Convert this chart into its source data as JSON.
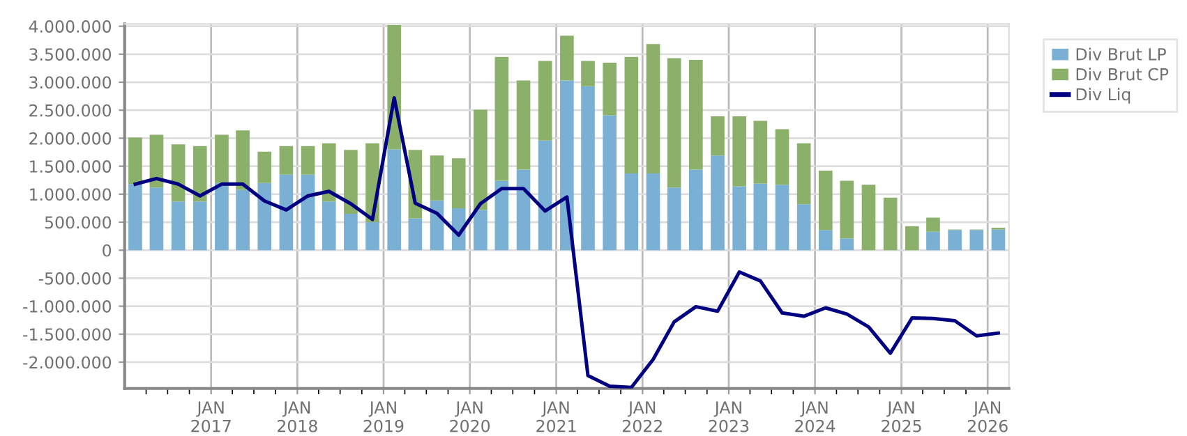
{
  "chart_data": {
    "type": "bar",
    "stacked": true,
    "x": [
      "2016-02-15",
      "2016-05-15",
      "2016-08-15",
      "2016-11-15",
      "2017-02-15",
      "2017-05-15",
      "2017-08-15",
      "2017-11-15",
      "2018-02-15",
      "2018-05-15",
      "2018-08-15",
      "2018-11-15",
      "2019-02-15",
      "2019-05-15",
      "2019-08-15",
      "2019-11-15",
      "2020-02-15",
      "2020-05-15",
      "2020-08-15",
      "2020-11-15",
      "2021-02-15",
      "2021-05-15",
      "2021-08-15",
      "2021-11-15",
      "2022-02-15",
      "2022-05-15",
      "2022-08-15",
      "2022-11-15",
      "2023-02-15",
      "2023-05-15",
      "2023-08-15",
      "2023-11-15",
      "2024-02-15",
      "2024-05-15",
      "2024-08-15",
      "2024-11-15",
      "2025-02-15",
      "2025-05-15",
      "2025-08-15",
      "2025-11-15",
      "2026-02-15"
    ],
    "series": [
      {
        "name": "Div Brut LP",
        "color": "#7ab0d4",
        "values": [
          1180000,
          1120000,
          870000,
          870000,
          1200000,
          1080000,
          1200000,
          1350000,
          1350000,
          870000,
          650000,
          500000,
          1800000,
          570000,
          890000,
          750000,
          720000,
          1240000,
          1440000,
          1960000,
          3030000,
          2930000,
          2410000,
          1370000,
          1370000,
          1120000,
          1440000,
          1690000,
          1140000,
          1190000,
          1170000,
          820000,
          360000,
          210000,
          0,
          0,
          0,
          330000,
          360000,
          360000,
          370000
        ]
      },
      {
        "name": "Div Brut CP",
        "color": "#8ab06a",
        "values": [
          830000,
          940000,
          1020000,
          990000,
          860000,
          1060000,
          560000,
          510000,
          510000,
          1040000,
          1140000,
          1410000,
          2220000,
          1220000,
          800000,
          890000,
          1790000,
          2210000,
          1590000,
          1420000,
          800000,
          450000,
          940000,
          2080000,
          2310000,
          2310000,
          1960000,
          700000,
          1250000,
          1120000,
          990000,
          1090000,
          1060000,
          1030000,
          1170000,
          940000,
          430000,
          250000,
          10000,
          10000,
          30000
        ]
      },
      {
        "name": "Div Liq",
        "type": "line",
        "color": "#000080",
        "values": [
          1180000,
          1280000,
          1180000,
          970000,
          1180000,
          1180000,
          880000,
          720000,
          970000,
          1050000,
          830000,
          550000,
          2720000,
          840000,
          660000,
          270000,
          830000,
          1100000,
          1100000,
          700000,
          950000,
          -2240000,
          -2430000,
          -2450000,
          -1950000,
          -1280000,
          -1010000,
          -1090000,
          -390000,
          -550000,
          -1120000,
          -1180000,
          -1030000,
          -1140000,
          -1370000,
          -1840000,
          -1210000,
          -1220000,
          -1260000,
          -1530000,
          -1480000
        ]
      }
    ],
    "xlim": [
      "2016-01-01",
      "2026-04-01"
    ],
    "xticks": [
      {
        "value": "2016-04-01",
        "label": null
      },
      {
        "value": "2016-07-01",
        "label": null
      },
      {
        "value": "2016-10-01",
        "label": null
      },
      {
        "value": "2017-01-01",
        "label": "JAN\n2017"
      },
      {
        "value": "2017-04-01",
        "label": null
      },
      {
        "value": "2017-07-01",
        "label": null
      },
      {
        "value": "2017-10-01",
        "label": null
      },
      {
        "value": "2018-01-01",
        "label": "JAN\n2018"
      },
      {
        "value": "2018-04-01",
        "label": null
      },
      {
        "value": "2018-07-01",
        "label": null
      },
      {
        "value": "2018-10-01",
        "label": null
      },
      {
        "value": "2019-01-01",
        "label": "JAN\n2019"
      },
      {
        "value": "2019-04-01",
        "label": null
      },
      {
        "value": "2019-07-01",
        "label": null
      },
      {
        "value": "2019-10-01",
        "label": null
      },
      {
        "value": "2020-01-01",
        "label": "JAN\n2020"
      },
      {
        "value": "2020-04-01",
        "label": null
      },
      {
        "value": "2020-07-01",
        "label": null
      },
      {
        "value": "2020-10-01",
        "label": null
      },
      {
        "value": "2021-01-01",
        "label": "JAN\n2021"
      },
      {
        "value": "2021-04-01",
        "label": null
      },
      {
        "value": "2021-07-01",
        "label": null
      },
      {
        "value": "2021-10-01",
        "label": null
      },
      {
        "value": "2022-01-01",
        "label": "JAN\n2022"
      },
      {
        "value": "2022-04-01",
        "label": null
      },
      {
        "value": "2022-07-01",
        "label": null
      },
      {
        "value": "2022-10-01",
        "label": null
      },
      {
        "value": "2023-01-01",
        "label": "JAN\n2023"
      },
      {
        "value": "2023-04-01",
        "label": null
      },
      {
        "value": "2023-07-01",
        "label": null
      },
      {
        "value": "2023-10-01",
        "label": null
      },
      {
        "value": "2024-01-01",
        "label": "JAN\n2024"
      },
      {
        "value": "2024-04-01",
        "label": null
      },
      {
        "value": "2024-07-01",
        "label": null
      },
      {
        "value": "2024-10-01",
        "label": null
      },
      {
        "value": "2025-01-01",
        "label": "JAN\n2025"
      },
      {
        "value": "2025-04-01",
        "label": null
      },
      {
        "value": "2025-07-01",
        "label": null
      },
      {
        "value": "2025-10-01",
        "label": null
      },
      {
        "value": "2026-01-01",
        "label": "JAN\n2026"
      }
    ],
    "ylim": [
      -2470000,
      4040000
    ],
    "yticks": [
      {
        "value": -2000000,
        "label": "-2.000.000"
      },
      {
        "value": -1500000,
        "label": "-1.500.000"
      },
      {
        "value": -1000000,
        "label": "-1.000.000"
      },
      {
        "value": -500000,
        "label": "-500.000"
      },
      {
        "value": 0,
        "label": "0"
      },
      {
        "value": 500000,
        "label": "500.000"
      },
      {
        "value": 1000000,
        "label": "1.000.000"
      },
      {
        "value": 1500000,
        "label": "1.500.000"
      },
      {
        "value": 2000000,
        "label": "2.000.000"
      },
      {
        "value": 2500000,
        "label": "2.500.000"
      },
      {
        "value": 3000000,
        "label": "3.000.000"
      },
      {
        "value": 3500000,
        "label": "3.500.000"
      },
      {
        "value": 4000000,
        "label": "4.000.000"
      }
    ],
    "grid": true,
    "legend": "top right",
    "line_style": "solid",
    "marker": "none"
  }
}
